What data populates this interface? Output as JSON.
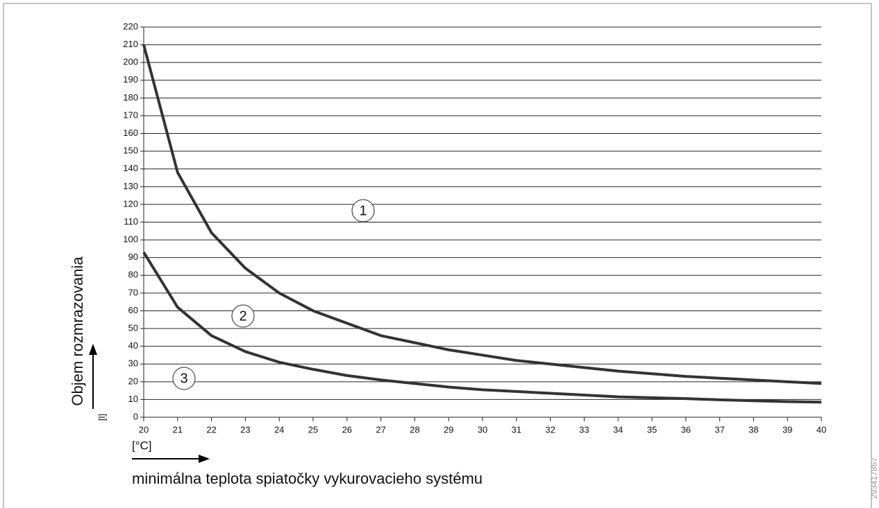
{
  "chart_data": {
    "type": "line",
    "y_label": "Objem rozmrazovania",
    "y_unit": "[l]",
    "x_unit": "[°C]",
    "x_label": "minimálna teplota spiatočky vykurovacieho systému",
    "side_code": "293417867",
    "annotations": [
      "1",
      "2",
      "3"
    ],
    "x": [
      20,
      21,
      22,
      23,
      24,
      25,
      26,
      27,
      28,
      29,
      30,
      31,
      32,
      33,
      34,
      35,
      36,
      37,
      38,
      39,
      40
    ],
    "series": [
      {
        "color": "#333333",
        "values": [
          210,
          138,
          104,
          84,
          70,
          60,
          53,
          46,
          42,
          38,
          35,
          32,
          30,
          28,
          26,
          24.5,
          23,
          22,
          21,
          20,
          19
        ]
      },
      {
        "color": "#333333",
        "values": [
          93,
          62,
          46,
          37,
          31,
          27,
          23.5,
          21,
          19,
          17,
          15.5,
          14.5,
          13.5,
          12.5,
          11.5,
          11,
          10.5,
          9.8,
          9.3,
          8.8,
          8.5
        ]
      }
    ],
    "xlim": [
      20,
      40
    ],
    "xticks": [
      20,
      21,
      22,
      23,
      24,
      25,
      26,
      27,
      28,
      29,
      30,
      31,
      32,
      33,
      34,
      35,
      36,
      37,
      38,
      39,
      40
    ],
    "ylim": [
      0,
      220
    ],
    "yticks": [
      0,
      10,
      20,
      30,
      40,
      50,
      60,
      70,
      80,
      90,
      100,
      110,
      120,
      130,
      140,
      150,
      160,
      170,
      180,
      190,
      200,
      210,
      220
    ],
    "grid": true
  }
}
